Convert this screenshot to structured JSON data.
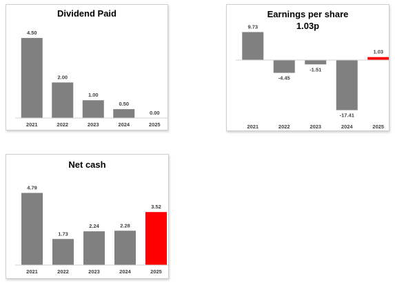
{
  "chart_data": [
    {
      "type": "bar",
      "title": "Dividend Paid",
      "subtitle": "",
      "categories": [
        "2021",
        "2022",
        "2023",
        "2024",
        "2025"
      ],
      "values": [
        4.5,
        2.0,
        1.0,
        0.5,
        0.0
      ],
      "value_labels": [
        "4.50",
        "2.00",
        "1.00",
        "0.50",
        "0.00"
      ],
      "highlight_index": null,
      "ylim": [
        0,
        5.2
      ],
      "colors": {
        "bar": "#808080",
        "highlight": "#ff0000",
        "axis": "#d0d0d0"
      }
    },
    {
      "type": "bar",
      "title": "Earnings per share",
      "subtitle": "1.03p",
      "categories": [
        "2021",
        "2022",
        "2023",
        "2024",
        "2025"
      ],
      "values": [
        9.73,
        -4.45,
        -1.51,
        -17.41,
        1.03
      ],
      "value_labels": [
        "9.73",
        "-4.45",
        "-1.51",
        "-17.41",
        "1.03"
      ],
      "highlight_index": 4,
      "ylim": [
        -19,
        12
      ],
      "colors": {
        "bar": "#808080",
        "highlight": "#ff0000",
        "axis": "#d0d0d0"
      }
    },
    {
      "type": "bar",
      "title": "Net cash",
      "subtitle": "",
      "categories": [
        "2021",
        "2022",
        "2023",
        "2024",
        "2025"
      ],
      "values": [
        4.79,
        1.73,
        2.24,
        2.28,
        3.52
      ],
      "value_labels": [
        "4.79",
        "1.73",
        "2.24",
        "2.28",
        "3.52"
      ],
      "highlight_index": 4,
      "ylim": [
        0,
        5.5
      ],
      "colors": {
        "bar": "#808080",
        "highlight": "#ff0000",
        "axis": "#d0d0d0"
      }
    }
  ]
}
